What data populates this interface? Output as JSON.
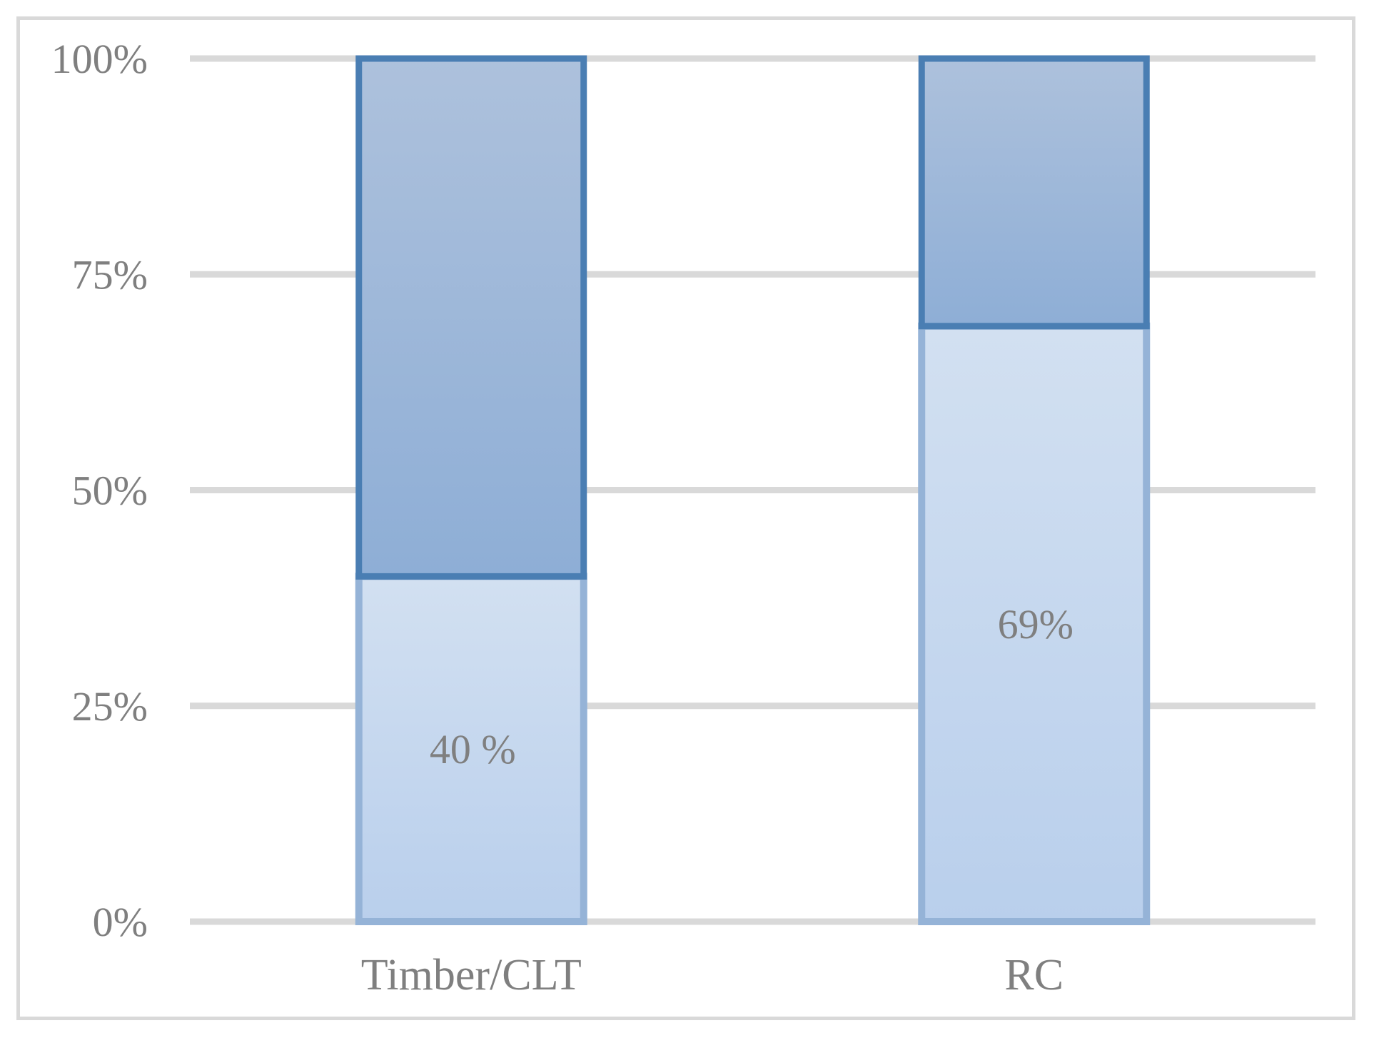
{
  "chart_data": {
    "type": "bar",
    "stacked": true,
    "categories": [
      "Timber/CLT",
      "RC"
    ],
    "series": [
      {
        "values": [
          40,
          69
        ],
        "color": "#c6d7ee",
        "border_color": "#95b3d7"
      },
      {
        "values": [
          60,
          31
        ],
        "color": "#9db5d6",
        "border_color": "#4a7eb3"
      }
    ],
    "data_labels": [
      "40 %",
      "69%"
    ],
    "ylim": [
      0,
      100
    ],
    "yticks": [
      0,
      25,
      50,
      75,
      100
    ],
    "ytick_labels": [
      "0%",
      "25%",
      "50%",
      "75%",
      "100%"
    ],
    "gridlines": true,
    "grid_color": "#d9d9d9",
    "legend": "none"
  }
}
